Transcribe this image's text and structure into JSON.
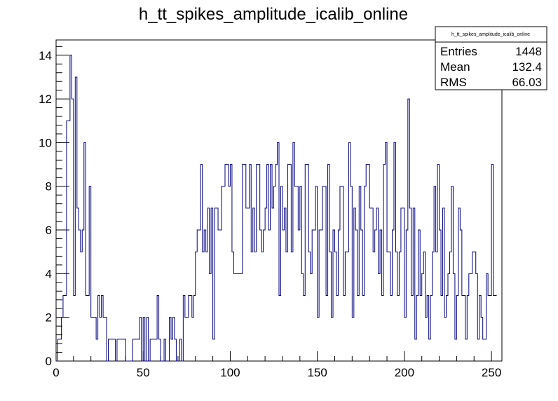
{
  "chart_data": {
    "type": "histogram",
    "title": "h_tt_spikes_amplitude_icalib_online",
    "xlabel": "",
    "ylabel": "",
    "xlim": [
      0,
      256
    ],
    "ylim": [
      0,
      14.7
    ],
    "bin_width": 1,
    "x_ticks": [
      0,
      50,
      100,
      150,
      200,
      250
    ],
    "y_ticks": [
      0,
      2,
      4,
      6,
      8,
      10,
      12,
      14
    ],
    "grid": false,
    "line_color": "#000080",
    "values": [
      0,
      1,
      1,
      2,
      3,
      3,
      11,
      11,
      14,
      12,
      3,
      13,
      7,
      6,
      5,
      6,
      10,
      3,
      3,
      8,
      2,
      2,
      2,
      1,
      3,
      2,
      3,
      2,
      2,
      0,
      1,
      1,
      1,
      1,
      0,
      1,
      1,
      1,
      1,
      1,
      0,
      0,
      0,
      0,
      1,
      1,
      1,
      1,
      2,
      0,
      2,
      0,
      2,
      0,
      1,
      1,
      1,
      1,
      3,
      1,
      0,
      0,
      1,
      0,
      0,
      2,
      1,
      2,
      1,
      0,
      0,
      1,
      0,
      3,
      2,
      2,
      3,
      3,
      2,
      3,
      5,
      6,
      6,
      9,
      5,
      6,
      5,
      7,
      4,
      7,
      1,
      7,
      7,
      6,
      6,
      8,
      8,
      9,
      9,
      8,
      9,
      5,
      4,
      4,
      4,
      4,
      4,
      9,
      9,
      7,
      7,
      9,
      5,
      7,
      5,
      9,
      9,
      6,
      5,
      6,
      7,
      9,
      6,
      9,
      7,
      8,
      9,
      10,
      3,
      8,
      6,
      7,
      5,
      9,
      9,
      5,
      10,
      8,
      8,
      6,
      8,
      4,
      3,
      9,
      9,
      5,
      4,
      6,
      6,
      8,
      2,
      6,
      6,
      8,
      8,
      3,
      9,
      5,
      2,
      6,
      5,
      3,
      6,
      8,
      8,
      3,
      5,
      5,
      10,
      8,
      2,
      7,
      6,
      3,
      8,
      6,
      3,
      8,
      9,
      9,
      7,
      7,
      5,
      6,
      7,
      4,
      6,
      3,
      9,
      10,
      5,
      5,
      3,
      6,
      10,
      5,
      3,
      5,
      7,
      7,
      2,
      6,
      12,
      7,
      3,
      7,
      1,
      3,
      6,
      3,
      4,
      5,
      2,
      3,
      1,
      3,
      5,
      8,
      5,
      9,
      6,
      3,
      7,
      2,
      3,
      4,
      5,
      8,
      4,
      1,
      3,
      7,
      6,
      3,
      3,
      1,
      3,
      4,
      4,
      5,
      5,
      4,
      1,
      3,
      2,
      1,
      1,
      4,
      3,
      3,
      9,
      3,
      3
    ],
    "stats": {
      "title": "h_tt_spikes_amplitude_icalib_online",
      "entries_label": "Entries",
      "entries": "1448",
      "mean_label": "Mean",
      "mean": "132.4",
      "rms_label": "RMS",
      "rms": "66.03"
    }
  }
}
